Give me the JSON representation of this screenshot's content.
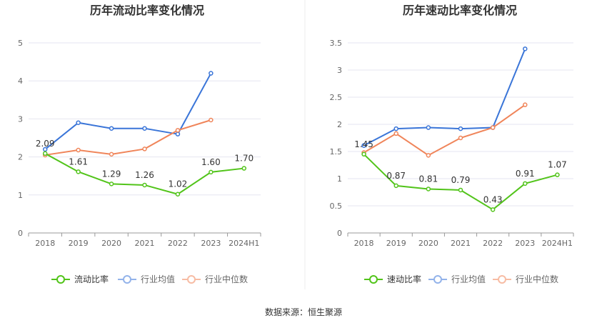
{
  "source": "数据来源：恒生聚源",
  "chart_data": [
    {
      "type": "line",
      "title": "历年流动比率变化情况",
      "categories": [
        "2018",
        "2019",
        "2020",
        "2021",
        "2022",
        "2023",
        "2024H1"
      ],
      "ylim": [
        0,
        5
      ],
      "yticks": [
        "0",
        "1",
        "2",
        "3",
        "4",
        "5"
      ],
      "grid": true,
      "legend_position": "bottom",
      "series": [
        {
          "name": "流动比率",
          "color": "#52c41a",
          "values": [
            2.09,
            1.61,
            1.29,
            1.26,
            1.02,
            1.6,
            1.7
          ],
          "labels": [
            "2.09",
            "1.61",
            "1.29",
            "1.26",
            "1.02",
            "1.60",
            "1.70"
          ]
        },
        {
          "name": "行业均值",
          "color": "#3a75d8",
          "values": [
            2.2,
            2.9,
            2.75,
            2.75,
            2.6,
            4.2,
            null
          ]
        },
        {
          "name": "行业中位数",
          "color": "#f0855a",
          "values": [
            2.05,
            2.18,
            2.07,
            2.21,
            2.7,
            2.97,
            null
          ]
        }
      ]
    },
    {
      "type": "line",
      "title": "历年速动比率变化情况",
      "categories": [
        "2018",
        "2019",
        "2020",
        "2021",
        "2022",
        "2023",
        "2024H1"
      ],
      "ylim": [
        0,
        3.5
      ],
      "yticks": [
        "0",
        "0.5",
        "1",
        "1.5",
        "2",
        "2.5",
        "3",
        "3.5"
      ],
      "grid": true,
      "legend_position": "bottom",
      "series": [
        {
          "name": "速动比率",
          "color": "#52c41a",
          "values": [
            1.45,
            0.87,
            0.81,
            0.79,
            0.43,
            0.91,
            1.07
          ],
          "labels": [
            "1.45",
            "0.87",
            "0.81",
            "0.79",
            "0.43",
            "0.91",
            "1.07"
          ]
        },
        {
          "name": "行业均值",
          "color": "#3a75d8",
          "values": [
            1.61,
            1.92,
            1.94,
            1.92,
            1.94,
            3.39,
            null
          ]
        },
        {
          "name": "行业中位数",
          "color": "#f0855a",
          "values": [
            1.48,
            1.83,
            1.43,
            1.75,
            1.94,
            2.36,
            null
          ]
        }
      ]
    }
  ]
}
